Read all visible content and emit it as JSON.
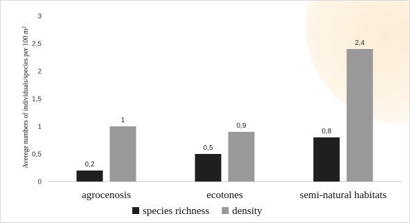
{
  "chart_data": {
    "type": "bar",
    "categories": [
      "agrocenosis",
      "ecotones",
      "semi-natural habitats"
    ],
    "series": [
      {
        "name": "species richness",
        "values": [
          0.2,
          0.5,
          0.8
        ],
        "labels": [
          "0,2",
          "0,5",
          "0,8"
        ],
        "color": "#1f1f1f"
      },
      {
        "name": "density",
        "values": [
          1,
          0.9,
          2.4
        ],
        "labels": [
          "1",
          "0,9",
          "2,4"
        ],
        "color": "#999999"
      }
    ],
    "ylabel_main": "Averege numbers of individuals/species per 100 m",
    "ylabel_superscript": "2",
    "ylim": [
      0,
      3
    ],
    "yticks": [
      0,
      0.5,
      1,
      1.5,
      2,
      2.5,
      3
    ],
    "ytick_labels": [
      "0",
      "0,5",
      "1",
      "1,5",
      "2",
      "2,5",
      "3"
    ],
    "grid": false,
    "legend_position": "bottom"
  }
}
